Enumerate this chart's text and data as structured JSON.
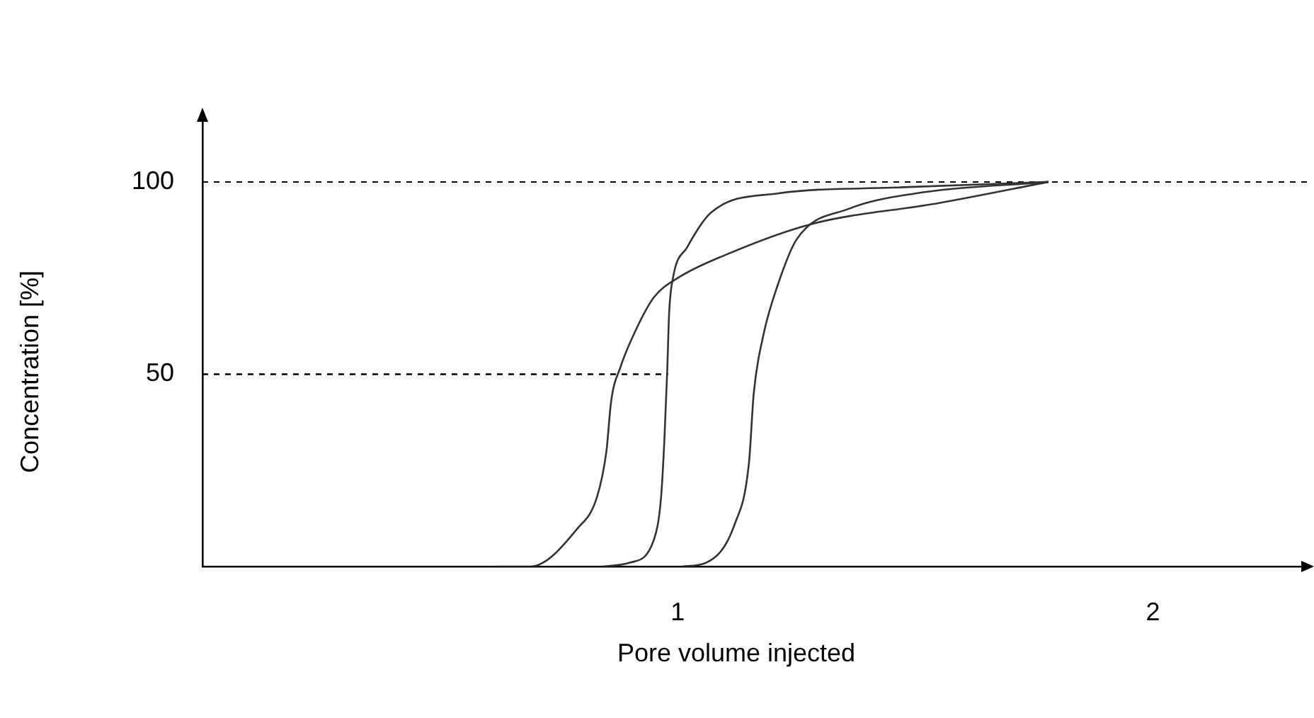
{
  "chart_data": {
    "type": "line",
    "xlabel": "Pore volume injected",
    "ylabel": "Concentration [%]",
    "xlim": [
      0,
      2.33
    ],
    "ylim": [
      0,
      116
    ],
    "xticks": [
      1,
      2
    ],
    "yticks": [
      50,
      100
    ],
    "grid": false,
    "legend": false,
    "marker": "none",
    "ref_lines": [
      {
        "axis": "y",
        "value": 100,
        "color": "#000000",
        "line_style": "dashed"
      }
    ],
    "series": [
      {
        "color": "#333333",
        "x": [
          0.62,
          0.69,
          0.79,
          0.83,
          0.85,
          0.86,
          0.88,
          0.91,
          0.95,
          1.0,
          1.1,
          1.28,
          1.55,
          1.78
        ],
        "values": [
          0,
          0,
          10,
          18,
          30,
          43,
          52,
          61,
          70,
          75,
          81,
          89,
          94.5,
          100
        ]
      },
      {
        "color": "#333333",
        "x": [
          0.84,
          0.9,
          0.95,
          0.965,
          0.972,
          0.978,
          0.982,
          0.99,
          1.02,
          1.07,
          1.21,
          1.45,
          1.78
        ],
        "values": [
          0,
          1,
          7,
          18,
          33,
          51,
          66,
          75,
          83,
          92,
          97,
          98.5,
          100
        ]
      },
      {
        "color": "#333333",
        "x": [
          1.01,
          1.06,
          1.12,
          1.15,
          1.16,
          1.18,
          1.21,
          1.25,
          1.36,
          1.5,
          1.78
        ],
        "values": [
          0,
          1,
          11,
          27,
          45,
          60,
          73,
          85,
          93,
          97,
          100
        ]
      },
      {
        "color": "#000000",
        "line_style": "dashed",
        "x": [
          0,
          0.98
        ],
        "values": [
          50,
          50
        ]
      }
    ]
  }
}
